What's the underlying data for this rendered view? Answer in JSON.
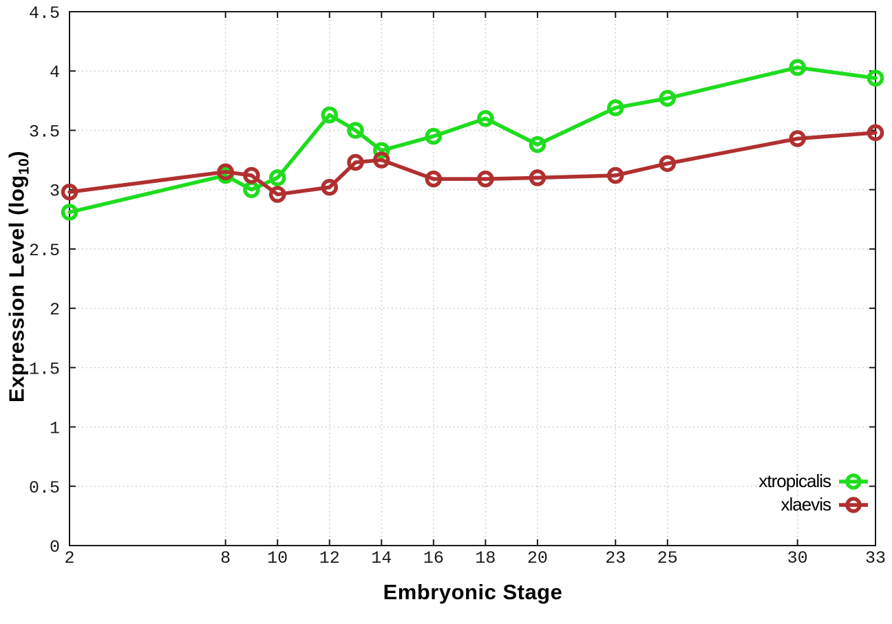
{
  "chart_data": {
    "type": "line",
    "title": "",
    "xlabel": "Embryonic Stage",
    "ylabel": "Expression Level (log10)",
    "ylabel_parts": {
      "main": "Expression Level (log",
      "sub": "10",
      "close": ")"
    },
    "x": [
      2,
      8,
      9,
      10,
      12,
      13,
      14,
      16,
      18,
      20,
      23,
      25,
      30,
      33
    ],
    "xlim": [
      2,
      33
    ],
    "ylim": [
      0,
      4.5
    ],
    "xtick_values": [
      2,
      8,
      10,
      12,
      14,
      16,
      18,
      20,
      23,
      25,
      30,
      33
    ],
    "xtick_labels": [
      "2",
      "8",
      "10",
      "12",
      "14",
      "16",
      "18",
      "20",
      "23",
      "25",
      "30",
      "33"
    ],
    "ytick_values": [
      0,
      0.5,
      1,
      1.5,
      2,
      2.5,
      3,
      3.5,
      4,
      4.5
    ],
    "ytick_labels": [
      "0",
      "0.5",
      "1",
      "1.5",
      "2",
      "2.5",
      "3",
      "3.5",
      "4",
      "4.5"
    ],
    "grid": true,
    "legend_position": "bottom-right",
    "series": [
      {
        "name": "xtropicalis",
        "color": "#1edc1e",
        "values": [
          2.81,
          3.12,
          3.0,
          3.1,
          3.63,
          3.5,
          3.33,
          3.45,
          3.6,
          3.38,
          3.69,
          3.77,
          4.03,
          3.94
        ]
      },
      {
        "name": "xlaevis",
        "color": "#b03030",
        "values": [
          2.98,
          3.15,
          3.12,
          2.96,
          3.02,
          3.23,
          3.25,
          3.09,
          3.09,
          3.1,
          3.12,
          3.22,
          3.43,
          3.48
        ]
      }
    ]
  },
  "colors": {
    "grid": "#c3c3c3",
    "axis": "#1a1a1a",
    "background": "#ffffff"
  }
}
